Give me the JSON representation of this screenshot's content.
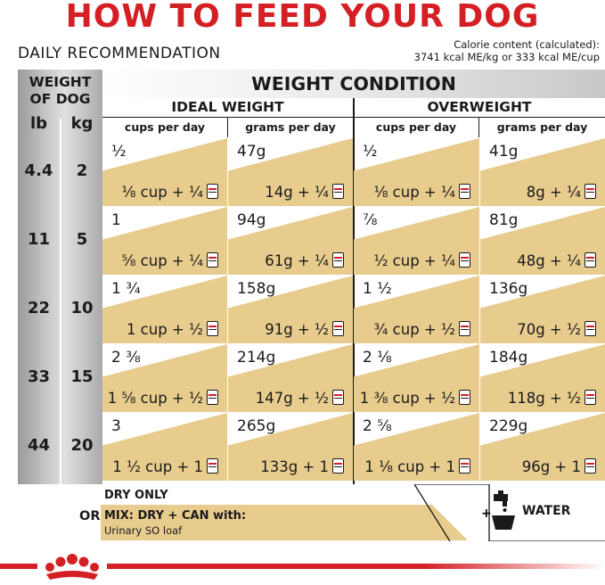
{
  "header": {
    "title": "HOW TO FEED YOUR DOG",
    "daily": "DAILY RECOMMENDATION",
    "calorie_line1": "Calorie content (calculated):",
    "calorie_line2": "3741 kcal ME/kg or 333 kcal ME/cup"
  },
  "table": {
    "weight_of_dog": "WEIGHT OF DOG",
    "lb": "lb",
    "kg": "kg",
    "weight_condition": "WEIGHT CONDITION",
    "ideal": "IDEAL WEIGHT",
    "overweight": "OVERWEIGHT",
    "sub": [
      "cups per day",
      "grams per day",
      "cups per day",
      "grams per day"
    ],
    "rows": [
      {
        "lb": "4.4",
        "kg": "2",
        "cells": [
          {
            "dry": "½",
            "mix": "⅛ cup + ¼"
          },
          {
            "dry": "47g",
            "mix": "14g + ¼"
          },
          {
            "dry": "½",
            "mix": "⅛ cup + ¼"
          },
          {
            "dry": "41g",
            "mix": "8g + ¼"
          }
        ]
      },
      {
        "lb": "11",
        "kg": "5",
        "cells": [
          {
            "dry": "1",
            "mix": "⅝ cup + ¼"
          },
          {
            "dry": "94g",
            "mix": "61g + ¼"
          },
          {
            "dry": "⅞",
            "mix": "½ cup + ¼"
          },
          {
            "dry": "81g",
            "mix": "48g + ¼"
          }
        ]
      },
      {
        "lb": "22",
        "kg": "10",
        "cells": [
          {
            "dry": "1 ¾",
            "mix": "1 cup + ½"
          },
          {
            "dry": "158g",
            "mix": "91g + ½"
          },
          {
            "dry": "1 ½",
            "mix": "¾ cup + ½"
          },
          {
            "dry": "136g",
            "mix": "70g + ½"
          }
        ]
      },
      {
        "lb": "33",
        "kg": "15",
        "cells": [
          {
            "dry": "2 ⅜",
            "mix": "1 ⅝ cup + ½"
          },
          {
            "dry": "214g",
            "mix": "147g + ½"
          },
          {
            "dry": "2 ⅛",
            "mix": "1 ⅜ cup + ½"
          },
          {
            "dry": "184g",
            "mix": "118g + ½"
          }
        ]
      },
      {
        "lb": "44",
        "kg": "20",
        "cells": [
          {
            "dry": "3",
            "mix": "1 ½ cup + 1"
          },
          {
            "dry": "265g",
            "mix": "133g + 1"
          },
          {
            "dry": "2 ⅝",
            "mix": "1 ⅛ cup + 1"
          },
          {
            "dry": "229g",
            "mix": "96g + 1"
          }
        ]
      }
    ]
  },
  "legend": {
    "dry_only": "DRY ONLY",
    "or": "OR",
    "mix": "MIX: DRY + CAN with:",
    "mix_product": "Urinary SO loaf",
    "water": "WATER"
  },
  "icons": {
    "can": "can-icon",
    "water": "water-faucet-bowl-icon",
    "logo": "royal-canin-crown-logo"
  },
  "colors": {
    "accent_red": "#d41f24",
    "tan": "#e8cc8e",
    "grey": "#b8b8b8"
  }
}
